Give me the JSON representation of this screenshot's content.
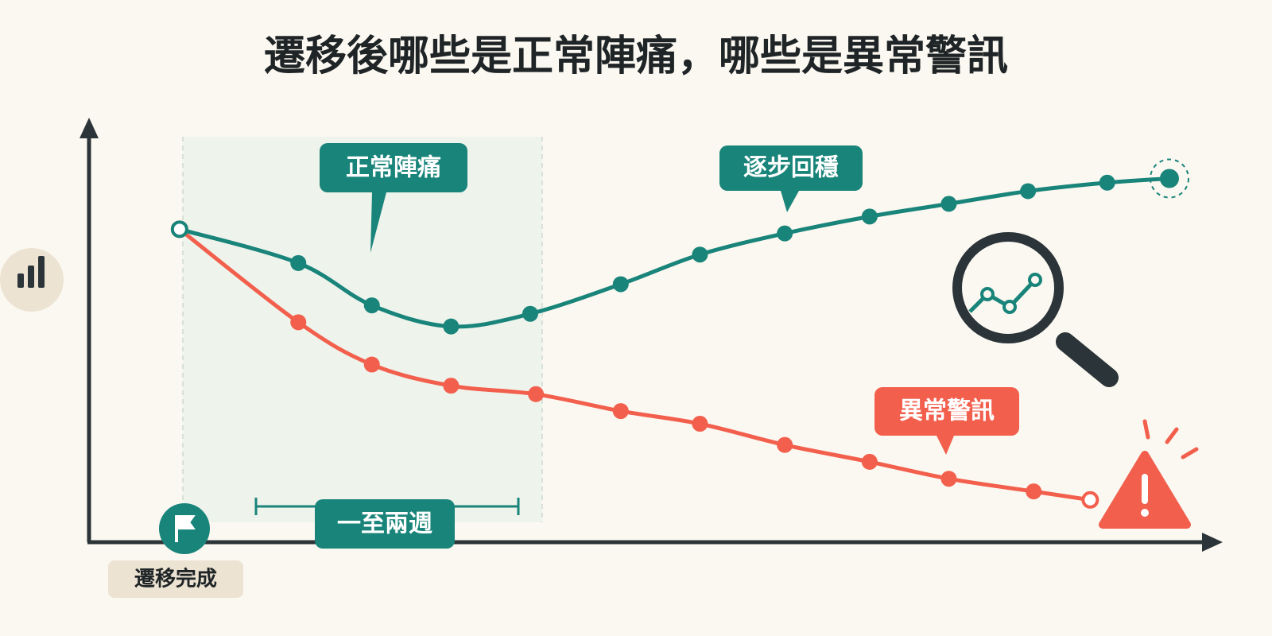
{
  "chart_data": {
    "type": "line",
    "title": "遷移後哪些是正常陣痛，哪些是異常警訊",
    "xlim": [
      0,
      100
    ],
    "ylim": [
      0,
      100
    ],
    "series": [
      {
        "color": "#19847a",
        "x": [
          8,
          18.5,
          25,
          32,
          39,
          47,
          54,
          61.5,
          69,
          76,
          83,
          90,
          95.5
        ],
        "values": [
          74,
          66,
          56,
          51,
          54,
          61,
          68,
          73,
          77,
          80,
          83,
          85,
          86
        ]
      },
      {
        "color": "#f25f4c",
        "x": [
          8,
          18.5,
          25,
          32,
          39.5,
          47,
          54,
          61.5,
          69,
          76,
          83.5,
          88.5
        ],
        "values": [
          74,
          52,
          42,
          37,
          35,
          31,
          28,
          23,
          19,
          15,
          12,
          10
        ]
      }
    ],
    "annotations": {
      "normal_pain": "正常陣痛",
      "stabilizing": "逐步回穩",
      "warning": "異常警訊",
      "period": "一至兩週",
      "migration_done": "遷移完成"
    }
  }
}
